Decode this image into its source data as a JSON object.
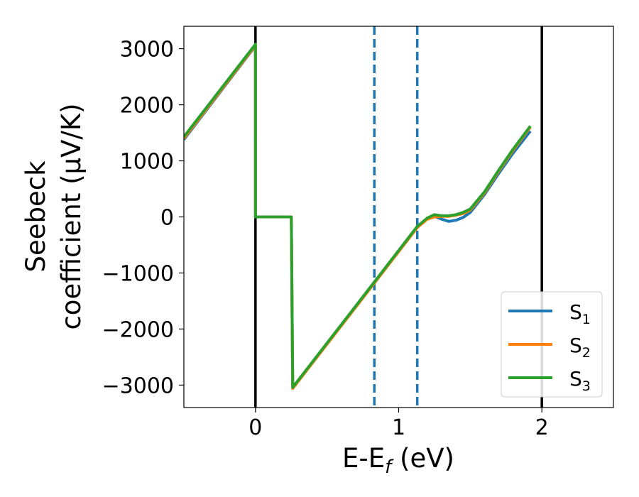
{
  "chart_data": {
    "type": "line",
    "title": "",
    "xlabel": {
      "main": "E-E",
      "sub": "f",
      "tail": " (eV)"
    },
    "ylabel": {
      "line1": "Seebeck",
      "line2": "coefficient  (μV/K)"
    },
    "xlim": [
      -0.5,
      2.5
    ],
    "ylim": [
      -3400,
      3400
    ],
    "xticks": [
      0,
      1,
      2
    ],
    "yticks": [
      -3000,
      -2000,
      -1000,
      0,
      1000,
      2000,
      3000
    ],
    "xtick_labels": [
      "0",
      "1",
      "2"
    ],
    "ytick_labels": [
      "−3000",
      "−2000",
      "−1000",
      "0",
      "1000",
      "2000",
      "3000"
    ],
    "grid": false,
    "legend_position": "lower-right",
    "vertical_lines": [
      {
        "x": 0.0,
        "style": "solid",
        "color": "#000000"
      },
      {
        "x": 2.0,
        "style": "solid",
        "color": "#000000"
      },
      {
        "x": 0.83,
        "style": "dashed",
        "color": "#1f77b4"
      },
      {
        "x": 1.13,
        "style": "dashed",
        "color": "#1f77b4"
      }
    ],
    "series": [
      {
        "name": "S",
        "sub": "1",
        "color": "#1f77b4",
        "x": [
          -0.5,
          0.0,
          0.0,
          0.25,
          0.25,
          0.26,
          0.8,
          1.13,
          1.2,
          1.25,
          1.3,
          1.35,
          1.4,
          1.45,
          1.5,
          1.6,
          1.7,
          1.8,
          1.92
        ],
        "y": [
          1380,
          3050,
          0,
          0,
          0,
          -3050,
          -1270,
          -190,
          -30,
          10,
          -40,
          -80,
          -60,
          -10,
          80,
          400,
          780,
          1140,
          1530
        ]
      },
      {
        "name": "S",
        "sub": "2",
        "color": "#ff7f0e",
        "x": [
          -0.5,
          0.0,
          0.0,
          0.25,
          0.25,
          0.26,
          0.8,
          1.13,
          1.2,
          1.25,
          1.3,
          1.35,
          1.4,
          1.45,
          1.5,
          1.6,
          1.7,
          1.8,
          1.92
        ],
        "y": [
          1400,
          3060,
          0,
          0,
          0,
          -3060,
          -1280,
          -190,
          -40,
          0,
          10,
          10,
          30,
          60,
          120,
          430,
          820,
          1190,
          1600
        ]
      },
      {
        "name": "S",
        "sub": "3",
        "color": "#2ca02c",
        "x": [
          -0.5,
          0.0,
          0.0,
          0.25,
          0.25,
          0.26,
          0.8,
          1.13,
          1.2,
          1.25,
          1.3,
          1.35,
          1.4,
          1.45,
          1.5,
          1.6,
          1.7,
          1.8,
          1.92
        ],
        "y": [
          1430,
          3080,
          0,
          0,
          0,
          -3040,
          -1260,
          -170,
          -20,
          40,
          20,
          20,
          40,
          80,
          140,
          450,
          840,
          1210,
          1620
        ]
      }
    ]
  }
}
